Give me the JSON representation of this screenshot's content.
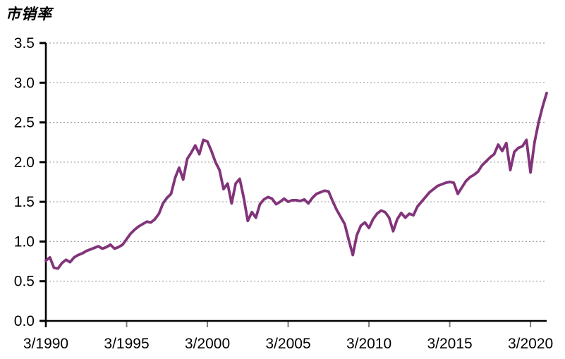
{
  "title": "市销率",
  "chart_data": {
    "type": "line",
    "title": "市销率",
    "legend": "none",
    "grid": "horizontal-dotted",
    "ylim": [
      0,
      3.5
    ],
    "y_tick_labels": [
      "0.0",
      "0.5",
      "1.0",
      "1.5",
      "2.0",
      "2.5",
      "3.0",
      "3.5"
    ],
    "x_tick_labels": [
      "3/1990",
      "3/1995",
      "3/2000",
      "3/2005",
      "3/2010",
      "3/2015",
      "3/2020"
    ],
    "x_tick_indices": [
      0,
      20,
      40,
      60,
      80,
      100,
      120
    ],
    "x_frequency": "quarterly",
    "line_color": "#82347A",
    "axis_color": "#000000",
    "gridline_color": "#a6a6a6",
    "x_tick_color": "#808080",
    "series": [
      {
        "name": "市销率",
        "values": [
          0.76,
          0.8,
          0.67,
          0.66,
          0.73,
          0.77,
          0.74,
          0.8,
          0.83,
          0.85,
          0.88,
          0.9,
          0.92,
          0.94,
          0.91,
          0.93,
          0.96,
          0.91,
          0.93,
          0.96,
          1.03,
          1.1,
          1.15,
          1.19,
          1.22,
          1.25,
          1.24,
          1.28,
          1.35,
          1.48,
          1.55,
          1.6,
          1.8,
          1.93,
          1.78,
          2.04,
          2.12,
          2.21,
          2.1,
          2.28,
          2.26,
          2.14,
          2.0,
          1.9,
          1.66,
          1.73,
          1.48,
          1.73,
          1.79,
          1.55,
          1.26,
          1.37,
          1.3,
          1.47,
          1.53,
          1.56,
          1.54,
          1.47,
          1.5,
          1.54,
          1.5,
          1.52,
          1.52,
          1.51,
          1.53,
          1.48,
          1.55,
          1.6,
          1.62,
          1.64,
          1.63,
          1.51,
          1.4,
          1.31,
          1.22,
          1.02,
          0.83,
          1.08,
          1.2,
          1.24,
          1.17,
          1.28,
          1.35,
          1.39,
          1.37,
          1.3,
          1.13,
          1.28,
          1.36,
          1.3,
          1.35,
          1.33,
          1.44,
          1.5,
          1.56,
          1.62,
          1.66,
          1.7,
          1.72,
          1.74,
          1.75,
          1.74,
          1.6,
          1.68,
          1.76,
          1.81,
          1.84,
          1.88,
          1.96,
          2.01,
          2.06,
          2.1,
          2.22,
          2.14,
          2.24,
          1.9,
          2.13,
          2.18,
          2.2,
          2.28,
          1.87,
          2.25,
          2.5,
          2.7,
          2.87
        ]
      }
    ]
  }
}
